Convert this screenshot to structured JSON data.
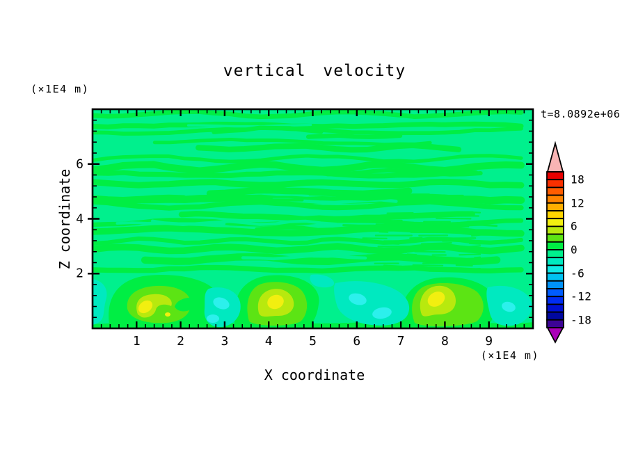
{
  "title": "vertical velocity",
  "time_label": "t=8.0892e+06",
  "axes": {
    "x": {
      "label": "X coordinate",
      "unit_label": "(×1E4 m)",
      "tick_labels": [
        "1",
        "2",
        "3",
        "4",
        "5",
        "6",
        "7",
        "8",
        "9"
      ],
      "tick_values": [
        1,
        2,
        3,
        4,
        5,
        6,
        7,
        8,
        9
      ],
      "minor_step": 0.2,
      "range": [
        0,
        10
      ]
    },
    "z": {
      "label": "Z coordinate",
      "unit_label": "(×1E4 m)",
      "tick_labels": [
        "2",
        "4",
        "6"
      ],
      "tick_values": [
        2,
        4,
        6
      ],
      "minor_step": 0.4,
      "range": [
        0,
        8
      ]
    }
  },
  "colorbar": {
    "labels": [
      "18",
      "12",
      "6",
      "0",
      "-6",
      "-12",
      "-18"
    ],
    "label_values": [
      18,
      12,
      6,
      0,
      -6,
      -12,
      -18
    ],
    "levels": {
      "min": -20,
      "max": 20,
      "step": 2
    },
    "colors_ascending": [
      "#3c0496",
      "#0008a0",
      "#0010d2",
      "#002df2",
      "#005cff",
      "#0092f8",
      "#00c2f2",
      "#10e9e6",
      "#00e9c0",
      "#00f08d",
      "#00ee44",
      "#5ce414",
      "#b8e90e",
      "#f2ef10",
      "#ffd600",
      "#ffae00",
      "#ff8400",
      "#ff5c00",
      "#f93000",
      "#e80000"
    ],
    "under_arrow_color": "#aa00b8",
    "over_arrow_color": "#f8b4b4"
  },
  "palette": {
    "background_green": "#00f08d",
    "band_green": "#00ee44",
    "updraft_outer": "#5ce414",
    "updraft_mid": "#b8e90e",
    "updraft_core": "#f2ef10",
    "downdraft_outer": "#00e9c0",
    "downdraft_core": "#2cf0ec",
    "frame": "#000000"
  },
  "chart_data": {
    "type": "filled_contour",
    "title": "vertical velocity",
    "xlabel": "X coordinate (×1E4 m)",
    "ylabel": "Z coordinate (×1E4 m)",
    "xlim": [
      0,
      10
    ],
    "ylim": [
      0,
      8
    ],
    "time_annotation": "t=8.0892e+06",
    "contour_interval": 2,
    "colorbar_tick_values": [
      18,
      12,
      6,
      0,
      -6,
      -12,
      -18
    ],
    "field_summary": {
      "upper_region": "z > 2: near-zero vertical velocity; long wavy horizontal bands alternating between the -2..0 and 0..2 contour bins, with a fine rippled interference patch near x=5.5-7.5, z=2-3.5",
      "boundary_layer": "z < 2: convective cells with updraft plumes and downdraft patches",
      "updrafts": [
        {
          "x": 1.4,
          "z": 0.6,
          "peak_w": 7
        },
        {
          "x": 4.2,
          "z": 0.8,
          "peak_w": 7
        },
        {
          "x": 8.0,
          "z": 0.9,
          "peak_w": 7
        }
      ],
      "downdrafts": [
        {
          "x": 0.2,
          "z": 0.7,
          "peak_w": -5
        },
        {
          "x": 3.0,
          "z": 0.6,
          "peak_w": -5
        },
        {
          "x": 6.2,
          "z": 0.8,
          "peak_w": -5
        },
        {
          "x": 9.5,
          "z": 0.7,
          "peak_w": -5
        }
      ]
    }
  }
}
